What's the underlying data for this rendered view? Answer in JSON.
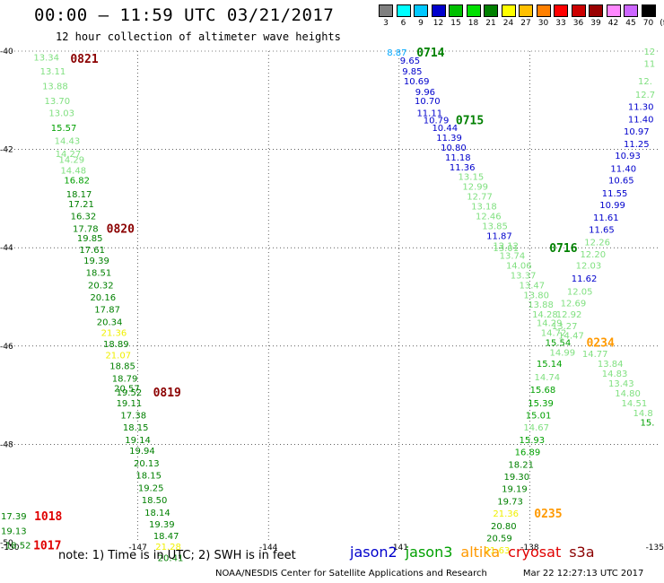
{
  "header": {
    "title": "00:00 – 11:59 UTC 03/21/2017",
    "subtitle": "12 hour collection of altimeter wave heights"
  },
  "color_scale": {
    "labels": [
      "3",
      "6",
      "9",
      "12",
      "15",
      "18",
      "21",
      "24",
      "27",
      "30",
      "33",
      "36",
      "39",
      "42",
      "45",
      "70",
      "(ft)"
    ],
    "colors": [
      "#808080",
      "#00ffff",
      "#00c8ff",
      "#0000cc",
      "#00c000",
      "#00e000",
      "#008000",
      "#ffff00",
      "#ffc000",
      "#ff8000",
      "#ff0000",
      "#cc0000",
      "#990000",
      "#ff88ff",
      "#cc66ff",
      "#000000"
    ]
  },
  "map": {
    "lat_labels": [
      "-40",
      "-42",
      "-44",
      "-46",
      "-48",
      "-50"
    ],
    "lon_labels": [
      "-150",
      "-147",
      "-144",
      "-141",
      "-138",
      "-135"
    ],
    "lat_range": [
      -50,
      -40
    ],
    "lon_range": [
      -150,
      -135
    ],
    "observations": [
      {
        "v": "13.34",
        "lon": -149.1,
        "lat": -40.12,
        "c": "#80e080"
      },
      {
        "v": "13.11",
        "lon": -148.95,
        "lat": -40.4,
        "c": "#80e080"
      },
      {
        "v": "13.88",
        "lon": -148.9,
        "lat": -40.7,
        "c": "#80e080"
      },
      {
        "v": "13.70",
        "lon": -148.85,
        "lat": -41.0,
        "c": "#80e080"
      },
      {
        "v": "13.03",
        "lon": -148.75,
        "lat": -41.25,
        "c": "#80e080"
      },
      {
        "v": "15.57",
        "lon": -148.7,
        "lat": -41.55,
        "c": "#00a000"
      },
      {
        "v": "14.43",
        "lon": -148.62,
        "lat": -41.82,
        "c": "#80e080"
      },
      {
        "v": "14.27",
        "lon": -148.6,
        "lat": -42.08,
        "c": "#80e080"
      },
      {
        "v": "14.29",
        "lon": -148.52,
        "lat": -42.2,
        "c": "#80e080"
      },
      {
        "v": "14.48",
        "lon": -148.48,
        "lat": -42.42,
        "c": "#80e080"
      },
      {
        "v": "16.82",
        "lon": -148.4,
        "lat": -42.62,
        "c": "#00a000"
      },
      {
        "v": "18.17",
        "lon": -148.35,
        "lat": -42.9,
        "c": "#008000"
      },
      {
        "v": "17.21",
        "lon": -148.3,
        "lat": -43.1,
        "c": "#008000"
      },
      {
        "v": "16.32",
        "lon": -148.25,
        "lat": -43.35,
        "c": "#008000"
      },
      {
        "v": "17.78",
        "lon": -148.2,
        "lat": -43.6,
        "c": "#008000"
      },
      {
        "v": "19.85",
        "lon": -148.1,
        "lat": -43.8,
        "c": "#008000"
      },
      {
        "v": "17.61",
        "lon": -148.05,
        "lat": -44.03,
        "c": "#008000"
      },
      {
        "v": "19.39",
        "lon": -147.95,
        "lat": -44.25,
        "c": "#008000"
      },
      {
        "v": "18.51",
        "lon": -147.9,
        "lat": -44.5,
        "c": "#008000"
      },
      {
        "v": "20.32",
        "lon": -147.85,
        "lat": -44.75,
        "c": "#008000"
      },
      {
        "v": "20.16",
        "lon": -147.8,
        "lat": -45.0,
        "c": "#008000"
      },
      {
        "v": "17.87",
        "lon": -147.7,
        "lat": -45.25,
        "c": "#008000"
      },
      {
        "v": "20.34",
        "lon": -147.65,
        "lat": -45.5,
        "c": "#008000"
      },
      {
        "v": "21.36",
        "lon": -147.55,
        "lat": -45.72,
        "c": "#f0f000"
      },
      {
        "v": "18.89",
        "lon": -147.5,
        "lat": -45.95,
        "c": "#008000"
      },
      {
        "v": "21.07",
        "lon": -147.45,
        "lat": -46.18,
        "c": "#f0f000"
      },
      {
        "v": "18.85",
        "lon": -147.35,
        "lat": -46.4,
        "c": "#008000"
      },
      {
        "v": "18.79",
        "lon": -147.3,
        "lat": -46.65,
        "c": "#008000"
      },
      {
        "v": "20.57",
        "lon": -147.25,
        "lat": -46.85,
        "c": "#008000"
      },
      {
        "v": "19.52",
        "lon": -147.2,
        "lat": -46.93,
        "c": "#008000"
      },
      {
        "v": "19.11",
        "lon": -147.2,
        "lat": -47.15,
        "c": "#008000"
      },
      {
        "v": "17.38",
        "lon": -147.1,
        "lat": -47.4,
        "c": "#008000"
      },
      {
        "v": "18.15",
        "lon": -147.05,
        "lat": -47.65,
        "c": "#008000"
      },
      {
        "v": "19.14",
        "lon": -147.0,
        "lat": -47.9,
        "c": "#008000"
      },
      {
        "v": "19.94",
        "lon": -146.9,
        "lat": -48.12,
        "c": "#008000"
      },
      {
        "v": "20.13",
        "lon": -146.8,
        "lat": -48.38,
        "c": "#008000"
      },
      {
        "v": "18.15",
        "lon": -146.75,
        "lat": -48.62,
        "c": "#008000"
      },
      {
        "v": "19.25",
        "lon": -146.7,
        "lat": -48.88,
        "c": "#008000"
      },
      {
        "v": "18.50",
        "lon": -146.62,
        "lat": -49.12,
        "c": "#008000"
      },
      {
        "v": "18.14",
        "lon": -146.55,
        "lat": -49.38,
        "c": "#008000"
      },
      {
        "v": "19.39",
        "lon": -146.45,
        "lat": -49.62,
        "c": "#008000"
      },
      {
        "v": "18.47",
        "lon": -146.35,
        "lat": -49.85,
        "c": "#008000"
      },
      {
        "v": "21.28",
        "lon": -146.3,
        "lat": -50.07,
        "c": "#f0f000"
      },
      {
        "v": "20.41",
        "lon": -146.25,
        "lat": -50.3,
        "c": "#008000"
      },
      {
        "v": "17.39",
        "lon": -149.85,
        "lat": -49.45,
        "c": "#008000"
      },
      {
        "v": "19.13",
        "lon": -149.85,
        "lat": -49.75,
        "c": "#008000"
      },
      {
        "v": "18.52",
        "lon": -149.75,
        "lat": -50.05,
        "c": "#008000"
      },
      {
        "v": "8.87",
        "lon": -141.05,
        "lat": -40.02,
        "c": "#00a8ff"
      },
      {
        "v": "9.65",
        "lon": -140.75,
        "lat": -40.18,
        "c": "#0000cc"
      },
      {
        "v": "9.85",
        "lon": -140.7,
        "lat": -40.4,
        "c": "#0000cc"
      },
      {
        "v": "10.69",
        "lon": -140.6,
        "lat": -40.6,
        "c": "#0000cc"
      },
      {
        "v": "9.96",
        "lon": -140.4,
        "lat": -40.82,
        "c": "#0000cc"
      },
      {
        "v": "10.70",
        "lon": -140.35,
        "lat": -41.0,
        "c": "#0000cc"
      },
      {
        "v": "11.11",
        "lon": -140.3,
        "lat": -41.25,
        "c": "#0000cc"
      },
      {
        "v": "10.79",
        "lon": -140.15,
        "lat": -41.4,
        "c": "#0000cc"
      },
      {
        "v": "10.44",
        "lon": -139.95,
        "lat": -41.55,
        "c": "#0000cc"
      },
      {
        "v": "11.39",
        "lon": -139.85,
        "lat": -41.75,
        "c": "#0000cc"
      },
      {
        "v": "10.80",
        "lon": -139.75,
        "lat": -41.95,
        "c": "#0000cc"
      },
      {
        "v": "11.18",
        "lon": -139.65,
        "lat": -42.15,
        "c": "#0000cc"
      },
      {
        "v": "11.36",
        "lon": -139.55,
        "lat": -42.35,
        "c": "#0000cc"
      },
      {
        "v": "13.15",
        "lon": -139.35,
        "lat": -42.55,
        "c": "#80e080"
      },
      {
        "v": "12.99",
        "lon": -139.25,
        "lat": -42.75,
        "c": "#80e080"
      },
      {
        "v": "12.77",
        "lon": -139.15,
        "lat": -42.95,
        "c": "#80e080"
      },
      {
        "v": "13.18",
        "lon": -139.05,
        "lat": -43.15,
        "c": "#80e080"
      },
      {
        "v": "12.46",
        "lon": -138.95,
        "lat": -43.35,
        "c": "#80e080"
      },
      {
        "v": "13.85",
        "lon": -138.8,
        "lat": -43.55,
        "c": "#80e080"
      },
      {
        "v": "11.87",
        "lon": -138.7,
        "lat": -43.75,
        "c": "#0000cc"
      },
      {
        "v": "12.12",
        "lon": -138.55,
        "lat": -43.95,
        "c": "#80e080"
      },
      {
        "v": "13.74",
        "lon": -138.4,
        "lat": -44.15,
        "c": "#80e080"
      },
      {
        "v": "13.01",
        "lon": -138.55,
        "lat": -44.0,
        "c": "#80e080"
      },
      {
        "v": "14.06",
        "lon": -138.25,
        "lat": -44.35,
        "c": "#80e080"
      },
      {
        "v": "13.37",
        "lon": -138.15,
        "lat": -44.55,
        "c": "#80e080"
      },
      {
        "v": "13.47",
        "lon": -137.95,
        "lat": -44.75,
        "c": "#80e080"
      },
      {
        "v": "13.80",
        "lon": -137.85,
        "lat": -44.95,
        "c": "#80e080"
      },
      {
        "v": "13.88",
        "lon": -137.75,
        "lat": -45.15,
        "c": "#80e080"
      },
      {
        "v": "14.28",
        "lon": -137.65,
        "lat": -45.35,
        "c": "#80e080"
      },
      {
        "v": "14.29",
        "lon": -137.55,
        "lat": -45.52,
        "c": "#80e080"
      },
      {
        "v": "14.72",
        "lon": -137.45,
        "lat": -45.72,
        "c": "#80e080"
      },
      {
        "v": "15.54",
        "lon": -137.35,
        "lat": -45.92,
        "c": "#00a000"
      },
      {
        "v": "14.99",
        "lon": -137.25,
        "lat": -46.12,
        "c": "#80e080"
      },
      {
        "v": "13.84",
        "lon": -136.15,
        "lat": -46.35,
        "c": "#80e080"
      },
      {
        "v": "14.83",
        "lon": -136.05,
        "lat": -46.55,
        "c": "#80e080"
      },
      {
        "v": "13.43",
        "lon": -135.9,
        "lat": -46.75,
        "c": "#80e080"
      },
      {
        "v": "14.80",
        "lon": -135.75,
        "lat": -46.95,
        "c": "#80e080"
      },
      {
        "v": "14.51",
        "lon": -135.6,
        "lat": -47.15,
        "c": "#80e080"
      },
      {
        "v": "14.8",
        "lon": -135.4,
        "lat": -47.35,
        "c": "#80e080"
      },
      {
        "v": "15.",
        "lon": -135.3,
        "lat": -47.55,
        "c": "#00a000"
      },
      {
        "v": "12",
        "lon": -135.25,
        "lat": -40.0,
        "c": "#80e080"
      },
      {
        "v": "11",
        "lon": -135.25,
        "lat": -40.25,
        "c": "#80e080"
      },
      {
        "v": "12.",
        "lon": -135.35,
        "lat": -40.6,
        "c": "#80e080"
      },
      {
        "v": "12.7",
        "lon": -135.35,
        "lat": -40.88,
        "c": "#80e080"
      },
      {
        "v": "11.30",
        "lon": -135.45,
        "lat": -41.12,
        "c": "#0000cc"
      },
      {
        "v": "11.40",
        "lon": -135.45,
        "lat": -41.38,
        "c": "#0000cc"
      },
      {
        "v": "10.97",
        "lon": -135.55,
        "lat": -41.62,
        "c": "#0000cc"
      },
      {
        "v": "11.25",
        "lon": -135.55,
        "lat": -41.88,
        "c": "#0000cc"
      },
      {
        "v": "10.93",
        "lon": -135.75,
        "lat": -42.12,
        "c": "#0000cc"
      },
      {
        "v": "11.40",
        "lon": -135.85,
        "lat": -42.38,
        "c": "#0000cc"
      },
      {
        "v": "10.65",
        "lon": -135.9,
        "lat": -42.62,
        "c": "#0000cc"
      },
      {
        "v": "11.55",
        "lon": -136.05,
        "lat": -42.88,
        "c": "#0000cc"
      },
      {
        "v": "10.99",
        "lon": -136.1,
        "lat": -43.12,
        "c": "#0000cc"
      },
      {
        "v": "11.61",
        "lon": -136.25,
        "lat": -43.38,
        "c": "#0000cc"
      },
      {
        "v": "11.65",
        "lon": -136.35,
        "lat": -43.62,
        "c": "#0000cc"
      },
      {
        "v": "12.26",
        "lon": -136.45,
        "lat": -43.88,
        "c": "#80e080"
      },
      {
        "v": "12.20",
        "lon": -136.55,
        "lat": -44.12,
        "c": "#80e080"
      },
      {
        "v": "12.03",
        "lon": -136.65,
        "lat": -44.35,
        "c": "#80e080"
      },
      {
        "v": "11.62",
        "lon": -136.75,
        "lat": -44.62,
        "c": "#0000cc"
      },
      {
        "v": "12.05",
        "lon": -136.85,
        "lat": -44.88,
        "c": "#80e080"
      },
      {
        "v": "12.69",
        "lon": -137.0,
        "lat": -45.12,
        "c": "#80e080"
      },
      {
        "v": "12.92",
        "lon": -137.1,
        "lat": -45.35,
        "c": "#80e080"
      },
      {
        "v": "13.27",
        "lon": -137.2,
        "lat": -45.58,
        "c": "#80e080"
      },
      {
        "v": "14.47",
        "lon": -137.05,
        "lat": -45.78,
        "c": "#80e080"
      },
      {
        "v": "14.77",
        "lon": -136.5,
        "lat": -46.15,
        "c": "#80e080"
      },
      {
        "v": "15.14",
        "lon": -137.55,
        "lat": -46.35,
        "c": "#00a000"
      },
      {
        "v": "14.74",
        "lon": -137.6,
        "lat": -46.62,
        "c": "#80e080"
      },
      {
        "v": "15.68",
        "lon": -137.7,
        "lat": -46.88,
        "c": "#00a000"
      },
      {
        "v": "15.39",
        "lon": -137.75,
        "lat": -47.15,
        "c": "#00a000"
      },
      {
        "v": "15.01",
        "lon": -137.8,
        "lat": -47.4,
        "c": "#00a000"
      },
      {
        "v": "14.67",
        "lon": -137.85,
        "lat": -47.65,
        "c": "#80e080"
      },
      {
        "v": "15.93",
        "lon": -137.95,
        "lat": -47.9,
        "c": "#00a000"
      },
      {
        "v": "16.89",
        "lon": -138.05,
        "lat": -48.15,
        "c": "#00a000"
      },
      {
        "v": "18.21",
        "lon": -138.2,
        "lat": -48.4,
        "c": "#008000"
      },
      {
        "v": "19.30",
        "lon": -138.3,
        "lat": -48.65,
        "c": "#008000"
      },
      {
        "v": "19.19",
        "lon": -138.35,
        "lat": -48.9,
        "c": "#008000"
      },
      {
        "v": "19.73",
        "lon": -138.45,
        "lat": -49.15,
        "c": "#008000"
      },
      {
        "v": "21.36",
        "lon": -138.55,
        "lat": -49.4,
        "c": "#f0f000"
      },
      {
        "v": "20.80",
        "lon": -138.6,
        "lat": -49.65,
        "c": "#008000"
      },
      {
        "v": "20.59",
        "lon": -138.7,
        "lat": -49.9,
        "c": "#008000"
      },
      {
        "v": "21.63",
        "lon": -138.75,
        "lat": -50.15,
        "c": "#f0f000"
      }
    ],
    "time_labels": [
      {
        "t": "0821",
        "lon": -148.55,
        "lat": -40.15,
        "c": "#8b0000"
      },
      {
        "t": "0820",
        "lon": -147.72,
        "lat": -43.6,
        "c": "#8b0000"
      },
      {
        "t": "0819",
        "lon": -146.65,
        "lat": -46.93,
        "c": "#8b0000"
      },
      {
        "t": "1018",
        "lon": -149.38,
        "lat": -49.45,
        "c": "#e00000"
      },
      {
        "t": "1017",
        "lon": -149.4,
        "lat": -50.05,
        "c": "#e00000"
      },
      {
        "t": "0714",
        "lon": -140.6,
        "lat": -40.02,
        "c": "#008000"
      },
      {
        "t": "0715",
        "lon": -139.7,
        "lat": -41.4,
        "c": "#008000"
      },
      {
        "t": "0716",
        "lon": -137.55,
        "lat": -44.0,
        "c": "#008000"
      },
      {
        "t": "0234",
        "lon": -136.7,
        "lat": -45.92,
        "c": "#ff9900"
      },
      {
        "t": "0235",
        "lon": -137.9,
        "lat": -49.4,
        "c": "#ff9900"
      }
    ]
  },
  "note": "note: 1) Time is in UTC; 2) SWH is in feet",
  "satellites": [
    {
      "name": "jason2",
      "color": "#0000cc"
    },
    {
      "name": "jason3",
      "color": "#00a000"
    },
    {
      "name": "altika",
      "color": "#ff9900"
    },
    {
      "name": "cryosat",
      "color": "#e00000"
    },
    {
      "name": "s3a",
      "color": "#8b0000"
    }
  ],
  "footer": {
    "center": "NOAA/NESDIS Center for Satellite Applications and Research",
    "date": "Mar 22 12:27:13 UTC 2017"
  }
}
